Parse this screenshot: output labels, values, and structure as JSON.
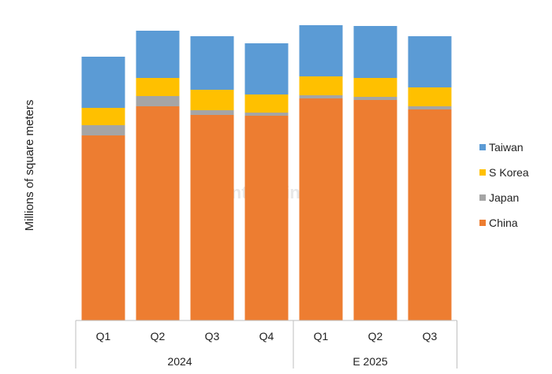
{
  "chart_data": {
    "type": "bar",
    "stacked": true,
    "categories": [
      "Q1",
      "Q2",
      "Q3",
      "Q4",
      "Q1",
      "Q2",
      "Q3"
    ],
    "groups": [
      {
        "label": "2024",
        "count": 4
      },
      {
        "label": "E 2025",
        "count": 3
      }
    ],
    "series": [
      {
        "name": "China",
        "color": "#ED7D31",
        "values": [
          235,
          272,
          261,
          260,
          282,
          280,
          268
        ]
      },
      {
        "name": "Japan",
        "color": "#A5A5A5",
        "values": [
          13,
          13,
          6,
          4,
          4,
          4,
          4
        ]
      },
      {
        "name": "S Korea",
        "color": "#FFC000",
        "values": [
          22,
          23,
          26,
          23,
          24,
          24,
          24
        ]
      },
      {
        "name": "Taiwan",
        "color": "#5B9BD5",
        "values": [
          65,
          60,
          68,
          65,
          65,
          66,
          65
        ]
      }
    ],
    "title": "",
    "xlabel": "",
    "ylabel": "Millions of square meters",
    "ylim": [
      0,
      380
    ],
    "grid": false,
    "legend_position": "right",
    "watermark": "Counterpoint"
  }
}
